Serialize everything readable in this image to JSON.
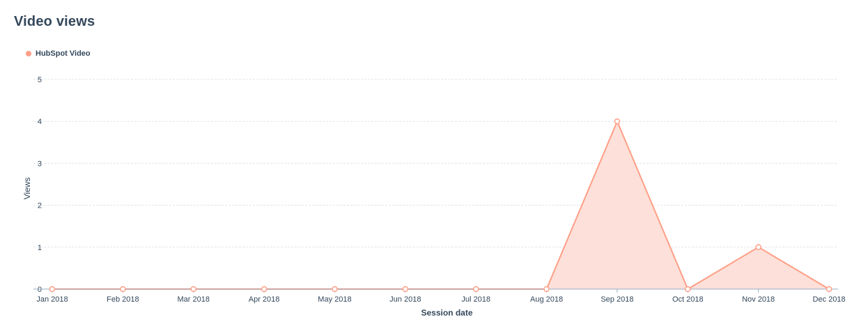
{
  "title": "Video views",
  "chart_data": {
    "type": "area",
    "title": "Video views",
    "xlabel": "Session date",
    "ylabel": "Views",
    "ylim": [
      0,
      5
    ],
    "yticks": [
      "0",
      "1",
      "2",
      "3",
      "4",
      "5"
    ],
    "categories": [
      "Jan 2018",
      "Feb 2018",
      "Mar 2018",
      "Apr 2018",
      "May 2018",
      "Jun 2018",
      "Jul 2018",
      "Aug 2018",
      "Sep 2018",
      "Oct 2018",
      "Nov 2018",
      "Dec 2018"
    ],
    "series": [
      {
        "name": "HubSpot Video",
        "color": "#ff9f86",
        "fill": "#fde0d9",
        "values": [
          0,
          0,
          0,
          0,
          0,
          0,
          0,
          0,
          4,
          0,
          1,
          0
        ]
      }
    ],
    "grid": true,
    "legend_position": "top-left"
  }
}
